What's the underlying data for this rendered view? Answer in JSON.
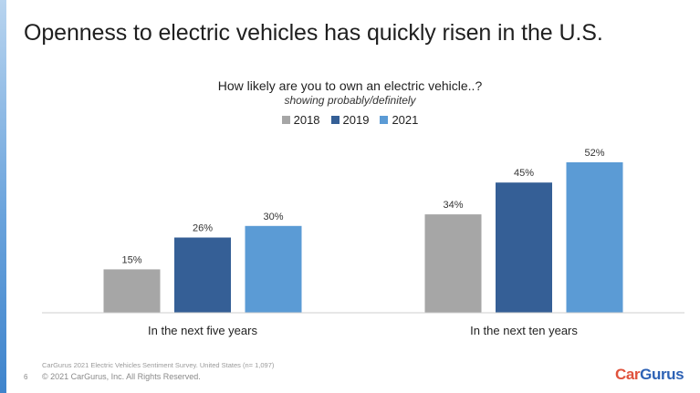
{
  "slide": {
    "title": "Openness to electric vehicles has quickly risen in the U.S.",
    "page_number": "6",
    "source": "CarGurus 2021 Electric Vehicles Sentiment Survey. United States (n= 1,097)",
    "copyright": "© 2021 CarGurus, Inc. All Rights Reserved.",
    "logo": {
      "part1": "Car",
      "part2": "Gurus"
    }
  },
  "chart_data": {
    "type": "bar",
    "title": "How likely are you to own an electric vehicle..?",
    "subtitle": "showing probably/definitely",
    "categories": [
      "In the next five years",
      "In the next ten years"
    ],
    "series": [
      {
        "name": "2018",
        "values": [
          15,
          34
        ],
        "color": "#a6a6a6"
      },
      {
        "name": "2019",
        "values": [
          26,
          45
        ],
        "color": "#355f96"
      },
      {
        "name": "2021",
        "values": [
          30,
          52
        ],
        "color": "#5b9bd5"
      }
    ],
    "data_labels": [
      [
        "15%",
        "34%"
      ],
      [
        "26%",
        "45%"
      ],
      [
        "30%",
        "52%"
      ]
    ],
    "ylim": [
      0,
      60
    ],
    "grid": false,
    "legend_position": "top-center",
    "xlabel": "",
    "ylabel": ""
  }
}
